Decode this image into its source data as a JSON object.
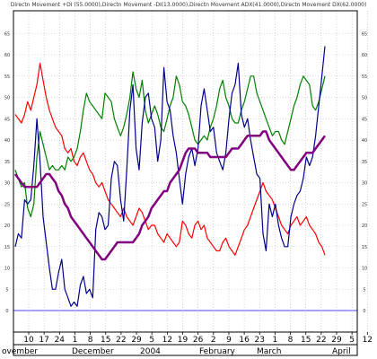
{
  "header": "Directn Movement +DI (55.0000),Directn Movement -DI(13.0000),Directn Movement ADX(41.0000),Directn Movement DX(62.0000)",
  "chart_data": {
    "type": "line",
    "title": "",
    "ylim": [
      0,
      70
    ],
    "y_ticks": [
      0,
      5,
      10,
      15,
      20,
      25,
      30,
      35,
      40,
      45,
      50,
      55,
      60,
      65
    ],
    "grid": true,
    "date_labels": [
      "10",
      "17",
      "24",
      "1",
      "8",
      "15",
      "22",
      "29",
      "5",
      "12",
      "19",
      "26",
      "2",
      "9",
      "16",
      "23",
      "1",
      "8",
      "15",
      "22",
      "29",
      "5",
      "12"
    ],
    "month_labels": [
      "ovember",
      "December",
      "2004",
      "February",
      "March",
      "April"
    ],
    "zero_line_value": 0,
    "series": [
      {
        "name": "+DI",
        "color": "#008000",
        "values": [
          33,
          31,
          29,
          30,
          24,
          22,
          25,
          36,
          42,
          39,
          36,
          33,
          34,
          33,
          33,
          34,
          33,
          36,
          35,
          36,
          38,
          42,
          47,
          51,
          49,
          48,
          47,
          46,
          45,
          51,
          50,
          49,
          45,
          43,
          41,
          43,
          46,
          50,
          56,
          52,
          50,
          54,
          47,
          44,
          46,
          48,
          46,
          43,
          42,
          45,
          48,
          50,
          55,
          53,
          49,
          48,
          46,
          43,
          40,
          39,
          40,
          41,
          40,
          43,
          45,
          48,
          52,
          54,
          50,
          48,
          45,
          44,
          44,
          47,
          49,
          52,
          55,
          55,
          51,
          49,
          47,
          45,
          43,
          41,
          42,
          42,
          40,
          39,
          42,
          45,
          48,
          50,
          53,
          55,
          54,
          53,
          48,
          47,
          49,
          52,
          55
        ]
      },
      {
        "name": "-DI",
        "color": "#ff0000",
        "values": [
          46,
          45,
          44,
          46,
          49,
          47,
          50,
          53,
          58,
          54,
          50,
          47,
          45,
          43,
          42,
          41,
          38,
          37,
          38,
          35,
          34,
          36,
          37,
          35,
          33,
          32,
          30,
          29,
          30,
          28,
          26,
          25,
          24,
          23,
          22,
          24,
          22,
          21,
          20,
          22,
          24,
          23,
          21,
          19,
          20,
          20,
          18,
          17,
          16,
          18,
          17,
          16,
          15,
          16,
          21,
          20,
          18,
          17,
          20,
          21,
          19,
          20,
          17,
          16,
          15,
          14,
          14,
          16,
          17,
          15,
          14,
          13,
          15,
          17,
          19,
          20,
          22,
          24,
          26,
          28,
          30,
          28,
          27,
          26,
          24,
          22,
          20,
          19,
          18,
          20,
          21,
          22,
          20,
          21,
          22,
          20,
          19,
          18,
          16,
          15,
          13
        ]
      },
      {
        "name": "DX",
        "color": "#00008b",
        "values": [
          15,
          18,
          17,
          26,
          25,
          26,
          34,
          45,
          35,
          22,
          16,
          10,
          5,
          5,
          9,
          12,
          5,
          3,
          1,
          2,
          1,
          6,
          8,
          4,
          5,
          3,
          19,
          23,
          22,
          19,
          20,
          31,
          35,
          34,
          26,
          21,
          33,
          47,
          53,
          38,
          33,
          44,
          50,
          51,
          45,
          43,
          35,
          40,
          57,
          49,
          47,
          41,
          37,
          31,
          25,
          32,
          36,
          38,
          34,
          38,
          48,
          52,
          47,
          42,
          43,
          37,
          35,
          33,
          37,
          45,
          51,
          53,
          58,
          46,
          43,
          45,
          40,
          36,
          32,
          31,
          18,
          14,
          25,
          22,
          25,
          20,
          17,
          15,
          15,
          22,
          25,
          27,
          28,
          31,
          36,
          34,
          36,
          41,
          48,
          55,
          62
        ]
      },
      {
        "name": "ADX",
        "color": "#800080",
        "values": [
          32,
          31,
          30,
          29,
          29,
          29,
          29,
          29,
          30,
          31,
          32,
          32,
          31,
          30,
          28,
          27,
          25,
          24,
          22,
          21,
          20,
          19,
          18,
          17,
          16,
          15,
          14,
          13,
          12,
          12,
          13,
          14,
          15,
          16,
          16,
          16,
          16,
          16,
          16,
          17,
          18,
          20,
          21,
          22,
          24,
          25,
          26,
          27,
          28,
          28,
          30,
          31,
          32,
          33,
          35,
          37,
          38,
          38,
          38,
          37,
          37,
          37,
          37,
          36,
          36,
          36,
          36,
          36,
          36,
          37,
          38,
          38,
          38,
          39,
          40,
          41,
          41,
          41,
          41,
          41,
          42,
          42,
          40,
          39,
          38,
          37,
          36,
          35,
          34,
          33,
          33,
          34,
          35,
          36,
          37,
          37,
          37,
          38,
          39,
          40,
          41
        ]
      }
    ]
  }
}
